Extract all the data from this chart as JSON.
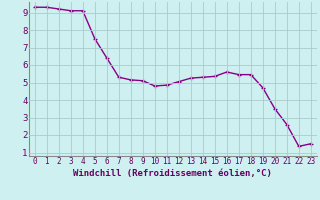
{
  "x": [
    0,
    1,
    2,
    3,
    4,
    5,
    6,
    7,
    8,
    9,
    10,
    11,
    12,
    13,
    14,
    15,
    16,
    17,
    18,
    19,
    20,
    21,
    22,
    23
  ],
  "y": [
    9.3,
    9.3,
    9.2,
    9.1,
    9.1,
    7.5,
    6.4,
    5.3,
    5.15,
    5.1,
    4.8,
    4.85,
    5.05,
    5.25,
    5.3,
    5.35,
    5.6,
    5.45,
    5.45,
    4.7,
    3.5,
    2.6,
    1.35,
    1.5
  ],
  "line_color": "#880088",
  "marker": "+",
  "markersize": 3,
  "linewidth": 1.0,
  "bg_color": "#cff0f0",
  "grid_color": "#aacccc",
  "xlabel": "Windchill (Refroidissement éolien,°C)",
  "xlabel_fontsize": 6.5,
  "xtick_fontsize": 5.5,
  "ytick_fontsize": 6.5,
  "xlim_min": -0.5,
  "xlim_max": 23.5,
  "ylim_min": 0.8,
  "ylim_max": 9.6,
  "yticks": [
    1,
    2,
    3,
    4,
    5,
    6,
    7,
    8,
    9
  ],
  "xticks": [
    0,
    1,
    2,
    3,
    4,
    5,
    6,
    7,
    8,
    9,
    10,
    11,
    12,
    13,
    14,
    15,
    16,
    17,
    18,
    19,
    20,
    21,
    22,
    23
  ],
  "tick_color": "#660066",
  "spine_color": "#888888"
}
